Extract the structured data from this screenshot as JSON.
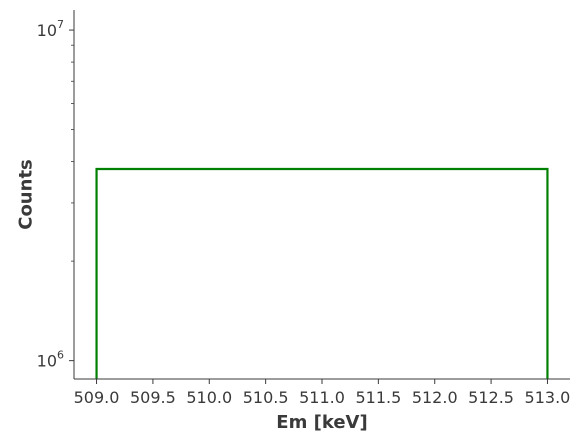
{
  "chart_data": {
    "type": "line",
    "drawstyle": "steps",
    "xlabel": "Em [keV]",
    "ylabel": "Counts",
    "y_scale": "log",
    "xlim": [
      508.8,
      513.2
    ],
    "ylim": [
      880000,
      11500000
    ],
    "x_ticks": [
      509.0,
      509.5,
      510.0,
      510.5,
      511.0,
      511.5,
      512.0,
      512.5,
      513.0
    ],
    "x_tick_labels": [
      "509.0",
      "509.5",
      "510.0",
      "510.5",
      "511.0",
      "511.5",
      "512.0",
      "512.5",
      "513.0"
    ],
    "y_ticks": [
      {
        "value": 1000000,
        "base": "10",
        "exponent": "6"
      },
      {
        "value": 10000000,
        "base": "10",
        "exponent": "7"
      }
    ],
    "y_minor_ticks": [
      2000000,
      3000000,
      4000000,
      5000000,
      6000000,
      7000000,
      8000000,
      9000000
    ],
    "grid": false,
    "spines": [
      "left",
      "bottom"
    ],
    "series": [
      {
        "color": "#008000",
        "x": [
          509.0,
          509.0,
          513.0,
          513.0
        ],
        "y": [
          880000,
          3800000,
          3800000,
          880000
        ]
      }
    ]
  }
}
